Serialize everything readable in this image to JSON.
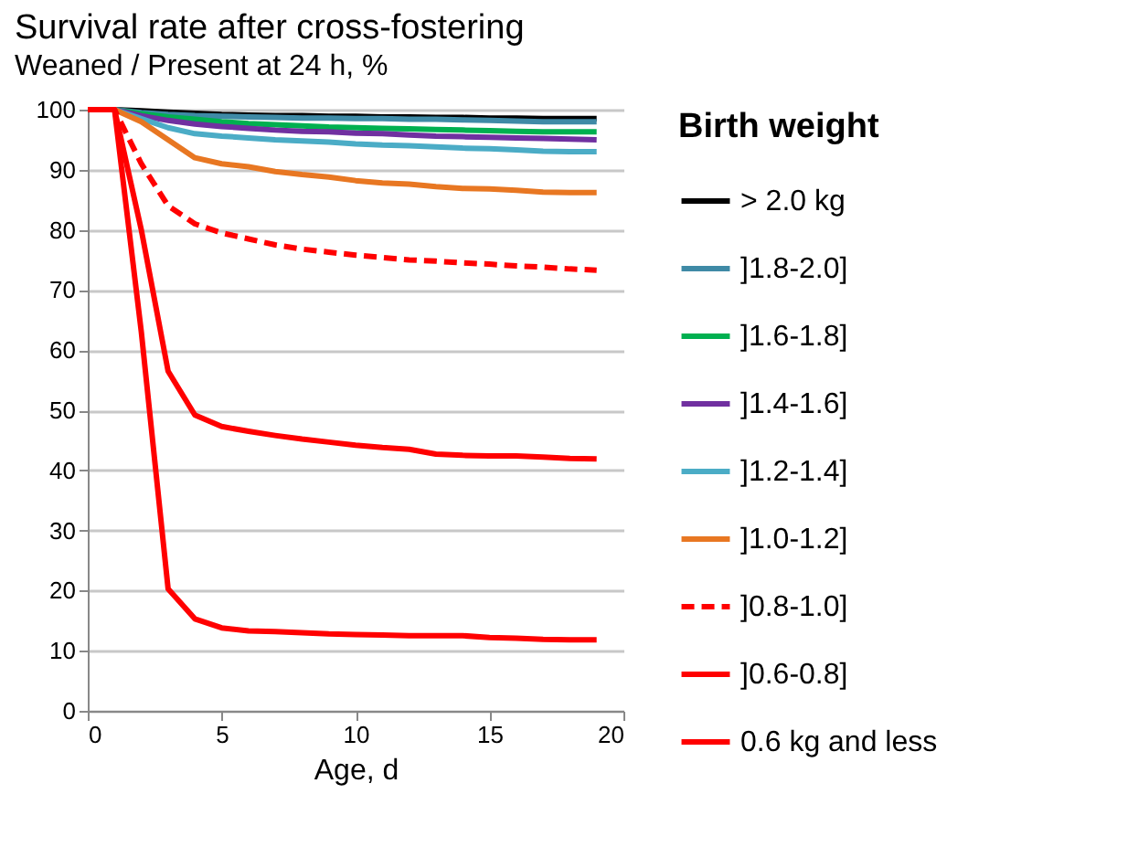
{
  "chart_data": {
    "type": "line",
    "title": "Survival rate after cross-fostering",
    "subtitle": "Weaned / Present at 24 h, %",
    "xlabel": "Age, d",
    "legend_title": "Birth weight",
    "legend": "right",
    "grid": "y",
    "marker": "none",
    "x": [
      0,
      1,
      2,
      3,
      4,
      5,
      6,
      7,
      8,
      9,
      10,
      11,
      12,
      13,
      14,
      15,
      16,
      17,
      18,
      19
    ],
    "xlim": [
      0,
      20
    ],
    "xticks": [
      0,
      5,
      10,
      15,
      20
    ],
    "ylim": [
      0,
      100
    ],
    "yticks": [
      0,
      10,
      20,
      30,
      40,
      50,
      60,
      70,
      80,
      90,
      100
    ],
    "series": [
      {
        "name": " > 2.0 kg",
        "color": "#000000",
        "line_style": "solid",
        "values": [
          100,
          100,
          99.8,
          99.6,
          99.4,
          99.2,
          99.1,
          99,
          99,
          98.9,
          98.9,
          98.8,
          98.8,
          98.7,
          98.7,
          98.6,
          98.6,
          98.5,
          98.5,
          98.5
        ]
      },
      {
        "name": "]1.8-2.0]",
        "color": "#3f8aa6",
        "line_style": "solid",
        "values": [
          100,
          100,
          99.5,
          99.2,
          99,
          98.9,
          98.8,
          98.7,
          98.6,
          98.6,
          98.5,
          98.5,
          98.4,
          98.4,
          98.3,
          98.2,
          98.1,
          98,
          98,
          98
        ]
      },
      {
        "name": "]1.6-1.8]",
        "color": "#00b050",
        "line_style": "solid",
        "values": [
          100,
          100,
          99.3,
          98.8,
          98.4,
          98,
          97.7,
          97.5,
          97.3,
          97.1,
          97,
          96.9,
          96.8,
          96.7,
          96.6,
          96.5,
          96.4,
          96.3,
          96.3,
          96.3
        ]
      },
      {
        "name": "]1.4-1.6]",
        "color": "#7030a0",
        "line_style": "solid",
        "values": [
          100,
          100,
          99,
          98.2,
          97.6,
          97.2,
          96.9,
          96.6,
          96.4,
          96.3,
          96.1,
          96,
          95.8,
          95.6,
          95.5,
          95.4,
          95.3,
          95.2,
          95.1,
          95
        ]
      },
      {
        "name": "]1.2-1.4]",
        "color": "#4bacc6",
        "line_style": "solid",
        "values": [
          100,
          100,
          98.5,
          97,
          96,
          95.6,
          95.3,
          95,
          94.8,
          94.6,
          94.3,
          94.1,
          94,
          93.8,
          93.6,
          93.5,
          93.3,
          93.1,
          93,
          93
        ]
      },
      {
        "name": "]1.0-1.2]",
        "color": "#e87722",
        "line_style": "solid",
        "values": [
          100,
          100,
          98,
          95,
          92,
          91,
          90.5,
          89.7,
          89.2,
          88.8,
          88.2,
          87.8,
          87.6,
          87.2,
          86.9,
          86.8,
          86.6,
          86.3,
          86.2,
          86.2
        ]
      },
      {
        "name": "]0.8-1.0]",
        "color": "#ff0000",
        "line_style": "dashed",
        "values": [
          100,
          100,
          91,
          84,
          81,
          79.5,
          78.5,
          77.5,
          76.8,
          76.3,
          75.8,
          75.4,
          75,
          74.8,
          74.5,
          74.3,
          74,
          73.8,
          73.5,
          73.3
        ]
      },
      {
        "name": "]0.6-0.8]",
        "color": "#ff0000",
        "line_style": "solid",
        "values": [
          100,
          100,
          80,
          56.5,
          49.2,
          47.3,
          46.5,
          45.8,
          45.2,
          44.7,
          44.2,
          43.8,
          43.5,
          42.7,
          42.5,
          42.4,
          42.4,
          42.2,
          42,
          41.9
        ]
      },
      {
        "name": "0.6  kg and less",
        "color": "#ff0000",
        "line_style": "solid",
        "values": [
          100,
          100,
          63,
          20.3,
          15.3,
          13.8,
          13.3,
          13.2,
          13,
          12.8,
          12.7,
          12.6,
          12.5,
          12.5,
          12.5,
          12.2,
          12.1,
          11.9,
          11.8,
          11.8
        ]
      }
    ]
  }
}
